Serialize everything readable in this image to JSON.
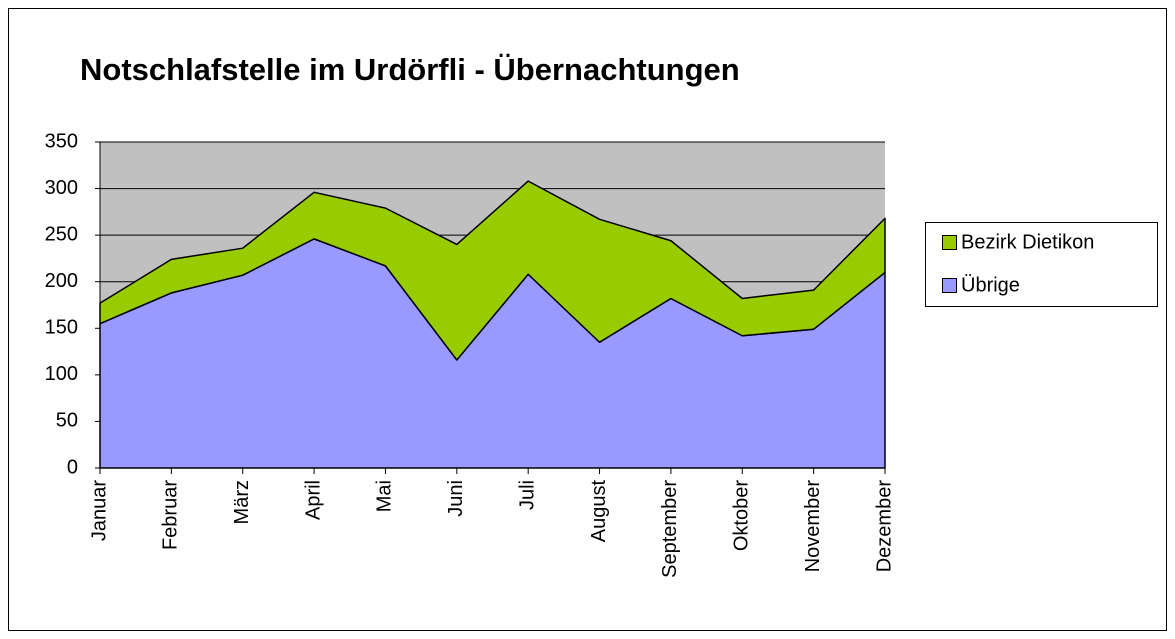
{
  "chart_data": {
    "type": "stacked_area",
    "title": "Notschlafstelle im Urdörfli - Übernachtungen",
    "categories": [
      "Januar",
      "Februar",
      "März",
      "April",
      "Mai",
      "Juni",
      "Juli",
      "August",
      "September",
      "Oktober",
      "November",
      "Dezember"
    ],
    "series": [
      {
        "name": "Bezirk Dietikon",
        "color": "#99cc00",
        "values": [
          22,
          36,
          29,
          50,
          62,
          124,
          100,
          132,
          62,
          40,
          42,
          58
        ]
      },
      {
        "name": "Übrige",
        "color": "#9999ff",
        "values": [
          155,
          188,
          207,
          246,
          217,
          116,
          208,
          135,
          182,
          142,
          149,
          210
        ]
      }
    ],
    "ylim": [
      0,
      350
    ],
    "yticks": [
      0,
      50,
      100,
      150,
      200,
      250,
      300,
      350
    ],
    "grid": true,
    "legend": "right"
  }
}
